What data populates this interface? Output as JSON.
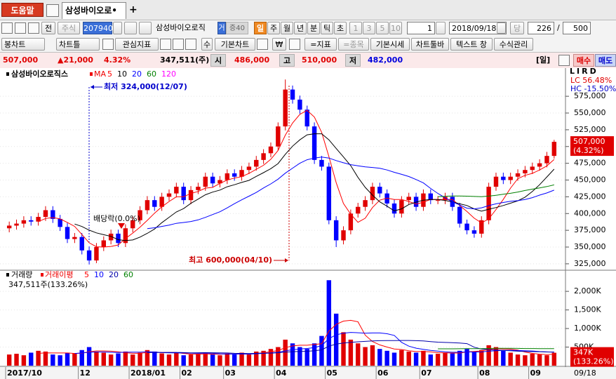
{
  "tabs": {
    "help": "도움말",
    "active": "삼성바이오로•",
    "add": "+"
  },
  "toolbar": {
    "all": "전",
    "market": "주식",
    "code": "207940",
    "name": "삼성바이오로직",
    "flag1": "거",
    "flag2": "증40",
    "periods": [
      "일",
      "주",
      "월",
      "년",
      "분",
      "틱",
      "초"
    ],
    "minutes": [
      "1",
      "3",
      "5",
      "10"
    ],
    "unit": "1",
    "date": "2018/09/18",
    "current": "당",
    "count": "226",
    "slash": "/",
    "total": "500"
  },
  "toolbar2": [
    "봉차트",
    "차트틀",
    "관심지표",
    "수",
    "기본차트",
    "₩",
    "=지표",
    "=종목",
    "기본시세",
    "차트툴바",
    "텍스트 창",
    "수식관리"
  ],
  "info": {
    "price": "507,000",
    "change": "▲21,000",
    "rate": "4.32%",
    "volume": "347,511(주)",
    "open_label": "시",
    "open": "486,000",
    "high_label": "고",
    "high": "510,000",
    "low_label": "저",
    "low": "482,000",
    "period": "[일]",
    "buy": "매수",
    "sell": "매도"
  },
  "chart_data": {
    "type": "candlestick",
    "title": "삼성바이오로직스",
    "ma_label": "MA",
    "ma": [
      {
        "period": 5,
        "color": "#ff0000"
      },
      {
        "period": 10,
        "color": "#000000"
      },
      {
        "period": 20,
        "color": "#0000ff"
      },
      {
        "period": 60,
        "color": "#008000"
      },
      {
        "period": 120,
        "color": "#ff00ff"
      }
    ],
    "up_color": "#e00000",
    "down_color": "#0000ff",
    "categories": [
      "2017/10",
      null,
      null,
      null,
      null,
      null,
      null,
      null,
      null,
      null,
      "12",
      null,
      null,
      null,
      null,
      null,
      null,
      "2018/01",
      null,
      null,
      null,
      null,
      null,
      null,
      "02",
      null,
      null,
      null,
      null,
      null,
      "03",
      null,
      null,
      null,
      null,
      null,
      null,
      "04",
      null,
      null,
      null,
      null,
      null,
      null,
      "05",
      null,
      null,
      null,
      null,
      null,
      null,
      "06",
      null,
      null,
      null,
      null,
      null,
      "07",
      null,
      null,
      null,
      null,
      null,
      null,
      null,
      "08",
      null,
      null,
      null,
      null,
      null,
      null,
      "09",
      null,
      null,
      null
    ],
    "last_date": "09/18",
    "open": [
      378000,
      382000,
      385000,
      390000,
      388000,
      395000,
      405000,
      392000,
      380000,
      362000,
      365000,
      345000,
      330000,
      350000,
      360000,
      370000,
      356000,
      378000,
      390000,
      405000,
      420000,
      410000,
      425000,
      430000,
      440000,
      420000,
      435000,
      440000,
      455000,
      445000,
      450000,
      460000,
      455000,
      465000,
      470000,
      480000,
      490000,
      500000,
      530000,
      585000,
      570000,
      555000,
      530000,
      480000,
      470000,
      390000,
      360000,
      375000,
      400000,
      410000,
      420000,
      440000,
      430000,
      415000,
      400000,
      420000,
      425000,
      410000,
      430000,
      420000,
      420000,
      425000,
      410000,
      385000,
      375000,
      370000,
      390000,
      440000,
      455000,
      450000,
      455000,
      460000,
      465000,
      470000,
      475000,
      486000
    ],
    "high": [
      388000,
      391000,
      396000,
      396000,
      401000,
      411000,
      411000,
      398000,
      386000,
      371000,
      371000,
      351000,
      356000,
      366000,
      376000,
      376000,
      384000,
      396000,
      411000,
      426000,
      426000,
      431000,
      436000,
      446000,
      446000,
      441000,
      446000,
      461000,
      461000,
      456000,
      466000,
      466000,
      471000,
      476000,
      486000,
      496000,
      506000,
      536000,
      600000,
      591000,
      576000,
      561000,
      536000,
      486000,
      476000,
      396000,
      381000,
      406000,
      416000,
      426000,
      446000,
      446000,
      436000,
      421000,
      426000,
      431000,
      431000,
      436000,
      436000,
      426000,
      431000,
      431000,
      416000,
      391000,
      381000,
      396000,
      446000,
      461000,
      461000,
      461000,
      466000,
      471000,
      476000,
      481000,
      492000,
      510000
    ],
    "low": [
      372000,
      376000,
      379000,
      382000,
      382000,
      389000,
      386000,
      374000,
      356000,
      356000,
      339000,
      324000,
      326000,
      344000,
      354000,
      350000,
      350000,
      372000,
      384000,
      399000,
      404000,
      404000,
      419000,
      424000,
      414000,
      414000,
      429000,
      434000,
      439000,
      439000,
      444000,
      449000,
      449000,
      459000,
      464000,
      474000,
      484000,
      494000,
      524000,
      564000,
      549000,
      524000,
      474000,
      464000,
      384000,
      350000,
      354000,
      369000,
      394000,
      404000,
      414000,
      424000,
      409000,
      394000,
      394000,
      414000,
      404000,
      404000,
      414000,
      414000,
      414000,
      404000,
      379000,
      369000,
      364000,
      364000,
      384000,
      434000,
      444000,
      444000,
      449000,
      454000,
      459000,
      464000,
      469000,
      482000
    ],
    "close": [
      382000,
      385000,
      390000,
      388000,
      395000,
      405000,
      392000,
      380000,
      362000,
      365000,
      345000,
      330000,
      350000,
      360000,
      370000,
      356000,
      378000,
      390000,
      405000,
      420000,
      410000,
      425000,
      430000,
      440000,
      420000,
      435000,
      440000,
      455000,
      445000,
      450000,
      460000,
      455000,
      465000,
      470000,
      480000,
      490000,
      500000,
      530000,
      585000,
      570000,
      555000,
      530000,
      480000,
      470000,
      390000,
      360000,
      375000,
      400000,
      410000,
      420000,
      440000,
      430000,
      415000,
      400000,
      420000,
      425000,
      410000,
      430000,
      420000,
      420000,
      425000,
      410000,
      385000,
      375000,
      370000,
      390000,
      440000,
      455000,
      450000,
      455000,
      460000,
      465000,
      470000,
      475000,
      486000,
      507000
    ],
    "ylim": [
      316500,
      616000
    ],
    "yticks": [
      {
        "value": 325000,
        "label": "325,000"
      },
      {
        "value": 350000,
        "label": "350,000"
      },
      {
        "value": 375000,
        "label": "375,000"
      },
      {
        "value": 400000,
        "label": "400,000"
      },
      {
        "value": 425000,
        "label": "425,000"
      },
      {
        "value": 450000,
        "label": "450,000"
      },
      {
        "value": 475000,
        "label": "475,000"
      },
      {
        "value": 500000,
        "label": "500,000"
      },
      {
        "value": 525000,
        "label": "525,000"
      },
      {
        "value": 550000,
        "label": "550,000"
      },
      {
        "value": 575000,
        "label": "575,000"
      }
    ],
    "last_label": "507,000",
    "last_rate": "(4.32%)",
    "lc": "LC  56.48%",
    "hc": "HC -15.50%",
    "axis_tools": "LIRD",
    "annotations": [
      "최저 324,000(12/07)",
      "배당락(0.0%)",
      "최고 600,000(04/10)"
    ],
    "volume": {
      "title": "거래량",
      "ma_label": "거래이평",
      "ma": [
        {
          "period": 5,
          "color": "#ff0000"
        },
        {
          "period": 10,
          "color": "#0000ff"
        },
        {
          "period": 20,
          "color": "#0000aa"
        },
        {
          "period": 60,
          "color": "#008000"
        }
      ],
      "values": [
        300000,
        320000,
        280000,
        350000,
        400000,
        380000,
        300000,
        280000,
        350000,
        330000,
        420000,
        500000,
        380000,
        350000,
        300000,
        330000,
        380000,
        300000,
        350000,
        420000,
        380000,
        330000,
        300000,
        350000,
        280000,
        300000,
        320000,
        350000,
        300000,
        280000,
        330000,
        300000,
        350000,
        300000,
        380000,
        400000,
        450000,
        500000,
        700000,
        600000,
        500000,
        450000,
        600000,
        800000,
        2300000,
        1400000,
        900000,
        700000,
        600000,
        500000,
        550000,
        450000,
        400000,
        350000,
        420000,
        380000,
        350000,
        400000,
        300000,
        320000,
        350000,
        330000,
        400000,
        450000,
        380000,
        420000,
        550000,
        500000,
        400000,
        350000,
        300000,
        280000,
        320000,
        300000,
        280000,
        347511
      ],
      "ylim": [
        0,
        2550000
      ],
      "yticks": [
        {
          "value": 500000,
          "label": "500K"
        },
        {
          "value": 1000000,
          "label": "1,000K"
        },
        {
          "value": 1500000,
          "label": "1,500K"
        },
        {
          "value": 2000000,
          "label": "2,000K"
        }
      ],
      "status": "347,511주(133.26%)",
      "last_label": "347K",
      "last_rate": "(133.26%)"
    }
  }
}
